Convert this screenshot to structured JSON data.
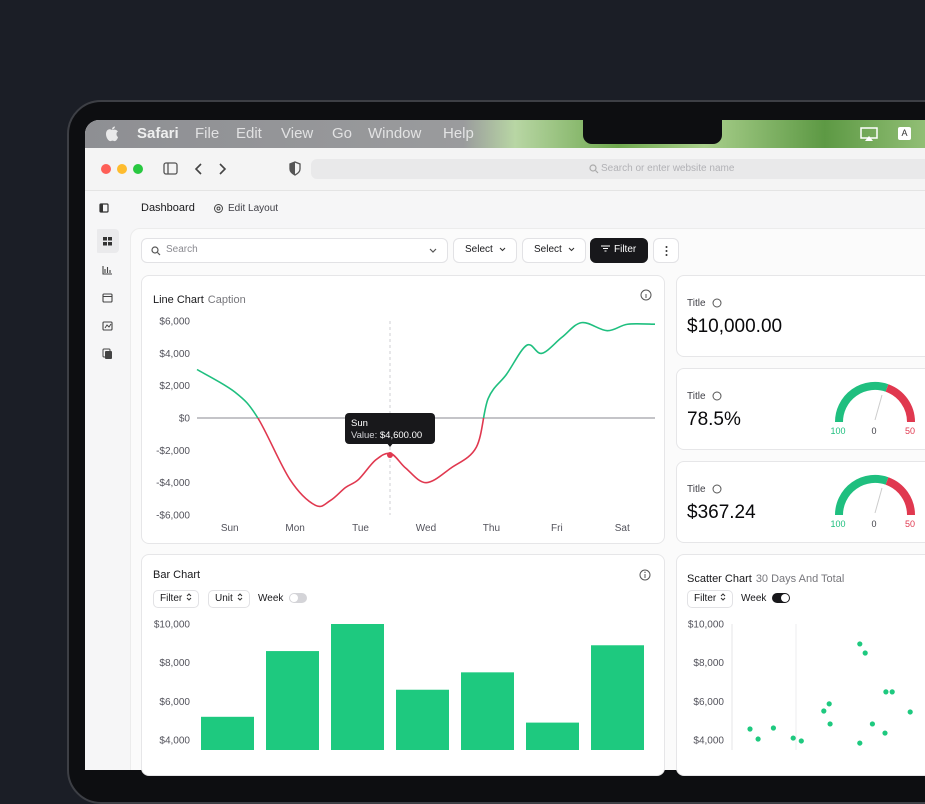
{
  "menu_bar": {
    "app": "Safari",
    "items": [
      "File",
      "Edit",
      "View",
      "Go",
      "Window",
      "Help"
    ],
    "input_indicator": "A"
  },
  "browser": {
    "address_placeholder": "Search or enter website name"
  },
  "header": {
    "title": "Dashboard",
    "edit": "Edit Layout"
  },
  "toolbar": {
    "search": "Search",
    "selects": [
      "Select",
      "Select"
    ],
    "filter": "Filter"
  },
  "stats": [
    {
      "title": "Title",
      "value": "$10,000.00"
    },
    {
      "title": "Title",
      "value": "78.5%",
      "gauge_labels": [
        "100",
        "0",
        "50"
      ]
    },
    {
      "title": "Title",
      "value": "$367.24",
      "gauge_labels": [
        "100",
        "0",
        "50"
      ]
    }
  ],
  "chart_data": [
    {
      "type": "line",
      "title": "Line Chart",
      "subtitle": "Caption",
      "x": [
        -0.5,
        0.08,
        0.43,
        0.92,
        1.31,
        1.54,
        1.77,
        1.97,
        2.23,
        2.46,
        2.69,
        3.0,
        3.38,
        3.77,
        3.95,
        4.23,
        4.54,
        4.77,
        5.08,
        5.38,
        5.77,
        6.08,
        6.5
      ],
      "series": [
        {
          "color": "#1fbf7f",
          "negative_color": "#e0384f",
          "values": [
            3000,
            1600,
            0,
            -3800,
            -5400,
            -5100,
            -4300,
            -3800,
            -2600,
            -2200,
            -3100,
            -4000,
            -3100,
            -1800,
            1200,
            2700,
            4500,
            4000,
            5000,
            5900,
            5400,
            5800,
            5800
          ]
        }
      ],
      "xlim": [
        -0.5,
        6.5
      ],
      "xticks": [
        {
          "value": 0,
          "label": "Sun"
        },
        {
          "value": 1,
          "label": "Mon"
        },
        {
          "value": 2,
          "label": "Tue"
        },
        {
          "value": 3,
          "label": "Wed"
        },
        {
          "value": 4,
          "label": "Thu"
        },
        {
          "value": 5,
          "label": "Fri"
        },
        {
          "value": 6,
          "label": "Sat"
        }
      ],
      "ylim": [
        -6000,
        6000
      ],
      "yticks": [
        {
          "value": 6000,
          "label": "$6,000"
        },
        {
          "value": 4000,
          "label": "$4,000"
        },
        {
          "value": 2000,
          "label": "$2,000"
        },
        {
          "value": 0,
          "label": "$0"
        },
        {
          "value": -2000,
          "label": "-$2,000"
        },
        {
          "value": -4000,
          "label": "-$4,000"
        },
        {
          "value": -6000,
          "label": "-$6,000"
        }
      ],
      "tooltip": {
        "title": "Sun",
        "label": "Value:",
        "value": "$4,600.00"
      }
    },
    {
      "type": "bar",
      "title": "Bar Chart",
      "controls": [
        "Filter",
        "Unit",
        "Week"
      ],
      "values": [
        5200,
        8600,
        10000,
        6600,
        7500,
        4900,
        8900
      ],
      "color": "#1ec97f",
      "ylim": [
        3500,
        10000
      ],
      "yticks": [
        {
          "value": 10000,
          "label": "$10,000"
        },
        {
          "value": 8000,
          "label": "$8,000"
        },
        {
          "value": 6000,
          "label": "$6,000"
        },
        {
          "value": 4000,
          "label": "$4,000"
        }
      ]
    },
    {
      "type": "scatter",
      "title": "Scatter Chart",
      "subtitle": "30 Days And Total",
      "controls": [
        "Filter",
        "Week"
      ],
      "x": [
        2,
        2.9,
        4.6,
        6.8,
        7.7,
        10.2,
        10.8,
        10.9,
        14.2,
        14.8,
        15.6,
        17.1,
        17.8,
        17.0,
        19.8,
        14.2
      ],
      "values": [
        4570,
        4050,
        4620,
        4100,
        3950,
        5500,
        5870,
        4830,
        8970,
        8500,
        4830,
        6490,
        6490,
        4360,
        5450,
        3840
      ],
      "color": "#1ec97f",
      "xlim": [
        0,
        30
      ],
      "ylim": [
        3500,
        10000
      ],
      "yticks": [
        {
          "value": 10000,
          "label": "$10,000"
        },
        {
          "value": 8000,
          "label": "$8,000"
        },
        {
          "value": 6000,
          "label": "$6,000"
        },
        {
          "value": 4000,
          "label": "$4,000"
        }
      ]
    }
  ]
}
